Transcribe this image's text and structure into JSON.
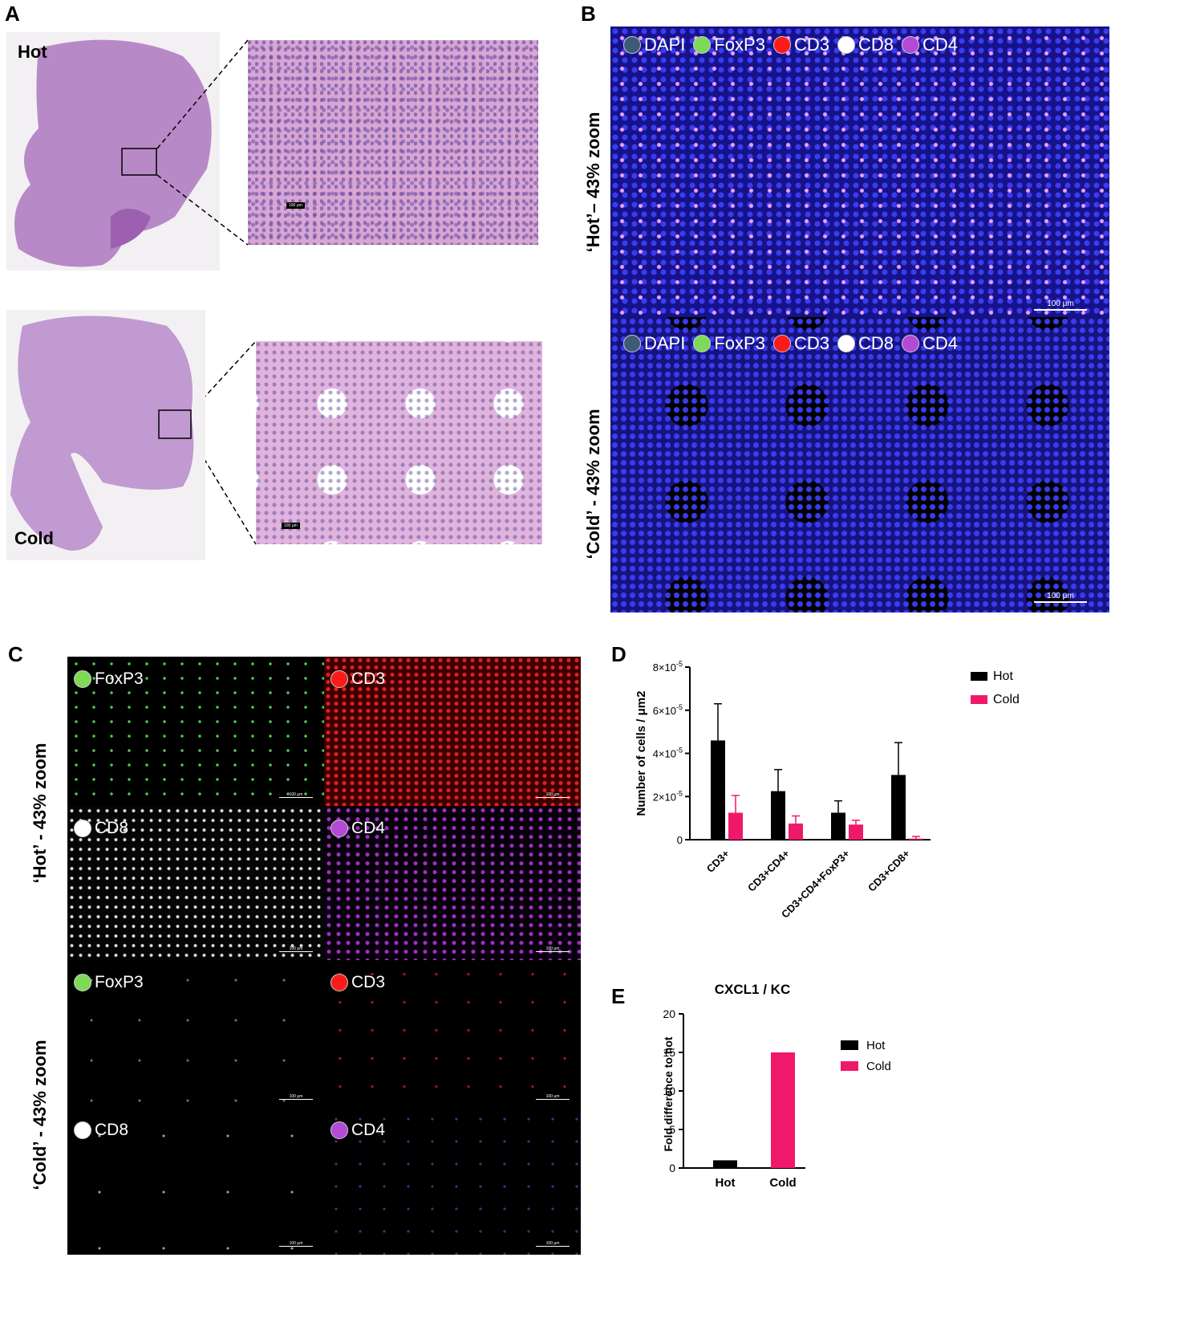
{
  "panel_letters": {
    "a": "A",
    "b": "B",
    "c": "C",
    "d": "D",
    "e": "E"
  },
  "panel_a": {
    "hot_label": "Hot",
    "cold_label": "Cold",
    "scale_hot": "100 μm",
    "scale_cold": "100 μm"
  },
  "panel_b": {
    "legend": [
      {
        "name": "DAPI",
        "color": "#3f5a78"
      },
      {
        "name": "FoxP3",
        "color": "#7ed957"
      },
      {
        "name": "CD3",
        "color": "#ff1a1a"
      },
      {
        "name": "CD8",
        "color": "#ffffff"
      },
      {
        "name": "CD4",
        "color": "#b24ad6"
      }
    ],
    "hot_side_label": "‘Hot’– 43% zoom",
    "cold_side_label": "‘Cold’ - 43% zoom",
    "scale": "100 μm"
  },
  "panel_c": {
    "hot_side_label": "‘Hot’ - 43% zoom",
    "cold_side_label": "‘Cold’ - 43% zoom",
    "channels": [
      {
        "name": "FoxP3",
        "color": "#7ed957"
      },
      {
        "name": "CD3",
        "color": "#ff1a1a"
      },
      {
        "name": "CD8",
        "color": "#ffffff"
      },
      {
        "name": "CD4",
        "color": "#b24ad6"
      }
    ],
    "scale": "100 μm"
  },
  "chart_data": [
    {
      "panel": "D",
      "type": "bar",
      "ylabel": "Number of cells / μm2",
      "ylim": [
        0,
        8e-05
      ],
      "yticks": [
        "0",
        "2x10-5",
        "4x10-5",
        "6x10-5",
        "8x10-5"
      ],
      "ytick_values": [
        0,
        2e-05,
        4e-05,
        6e-05,
        8e-05
      ],
      "categories": [
        "CD3+",
        "CD3+CD4+",
        "CD3+CD4+FoxP3+",
        "CD3+CD8+"
      ],
      "series": [
        {
          "name": "Hot",
          "color": "#000000",
          "values": [
            4.6e-05,
            2.25e-05,
            1.25e-05,
            3e-05
          ],
          "errors": [
            1.7e-05,
            1e-05,
            5.5e-06,
            1.5e-05
          ]
        },
        {
          "name": "Cold",
          "color": "#f0186b",
          "values": [
            1.25e-05,
            7.5e-06,
            7e-06,
            5e-07
          ],
          "errors": [
            8e-06,
            3.5e-06,
            2e-06,
            1e-06
          ]
        }
      ],
      "legend_position": "top-right"
    },
    {
      "panel": "E",
      "type": "bar",
      "title": "CXCL1 / KC",
      "ylabel": "Fold difference to hot",
      "ylim": [
        0,
        20
      ],
      "yticks": [
        "0",
        "5",
        "10",
        "15",
        "20"
      ],
      "ytick_values": [
        0,
        5,
        10,
        15,
        20
      ],
      "categories": [
        "Hot",
        "Cold"
      ],
      "series": [
        {
          "name": "Hot",
          "color": "#000000",
          "values": [
            1,
            null
          ]
        },
        {
          "name": "Cold",
          "color": "#f0186b",
          "values": [
            null,
            15
          ]
        }
      ],
      "legend_position": "right"
    }
  ]
}
